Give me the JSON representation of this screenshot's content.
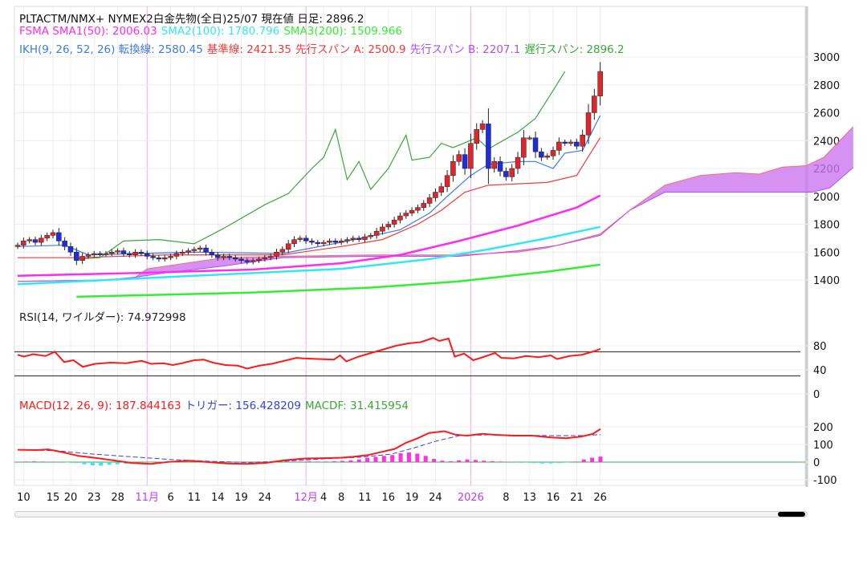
{
  "legend": {
    "title": "PLTACTM/NMX+ NYMEX2白金先物(全日)25/07  現在値 日足: 2896.2",
    "sma1": "FSMA SMA1(50): 2006.03",
    "sma2": "SMA2(100): 1780.796",
    "sma3": "SMA3(200): 1509.966",
    "ikh": "IKH(9, 26, 52, 26) 転換線: 2580.45",
    "kijun": "基準線: 2421.35",
    "spanA": "先行スパン A: 2500.9",
    "spanB": "先行スパン B: 2207.1",
    "chikou": "遅行スパン: 2896.2",
    "rsi": "RSI(14, ワイルダー): 74.972998",
    "macd": "MACD(12, 26, 9): 187.844163",
    "trigger": "トリガー: 156.428209",
    "macdf": "MACDF: 31.415954"
  },
  "colors": {
    "up": "#e0262b",
    "down": "#1f2ddb",
    "sma1": "#ff2cf0",
    "sma2": "#33e6f5",
    "sma3": "#33ee33",
    "tenkan": "#3d7be6",
    "kijun": "#f03a3a",
    "chikou": "#3aa83a",
    "cloud": "#cc77f0",
    "rsi": "#ff1a1a",
    "macd": "#ff1a1a",
    "signal": "#3344dd",
    "hist": "#ff33dd",
    "month": "#c33cf0"
  },
  "chart_data": [
    {
      "type": "candlestick",
      "title": "PLTACTM/NMX+ NYMEX2白金先物(全日)25/07",
      "ylim": [
        1300,
        3100
      ],
      "yticks": [
        1400,
        1600,
        1800,
        2000,
        2200,
        2400,
        2600,
        2800,
        3000
      ],
      "xticks": [
        {
          "i": 1,
          "label": "10"
        },
        {
          "i": 6,
          "label": "15"
        },
        {
          "i": 9,
          "label": "20"
        },
        {
          "i": 13,
          "label": "23"
        },
        {
          "i": 17,
          "label": "28"
        },
        {
          "i": 22,
          "label": "11月",
          "month": true
        },
        {
          "i": 26,
          "label": "6"
        },
        {
          "i": 30,
          "label": "11"
        },
        {
          "i": 34,
          "label": "14"
        },
        {
          "i": 38,
          "label": "19"
        },
        {
          "i": 42,
          "label": "24"
        },
        {
          "i": 49,
          "label": "12月",
          "month": true
        },
        {
          "i": 52,
          "label": "4"
        },
        {
          "i": 55,
          "label": "8"
        },
        {
          "i": 59,
          "label": "11"
        },
        {
          "i": 63,
          "label": "16"
        },
        {
          "i": 67,
          "label": "19"
        },
        {
          "i": 71,
          "label": "24"
        },
        {
          "i": 77,
          "label": "2026",
          "month": true
        },
        {
          "i": 83,
          "label": "8"
        },
        {
          "i": 87,
          "label": "13"
        },
        {
          "i": 91,
          "label": "16"
        },
        {
          "i": 95,
          "label": "21"
        },
        {
          "i": 99,
          "label": "26"
        }
      ],
      "close": [
        1650,
        1680,
        1690,
        1670,
        1700,
        1720,
        1740,
        1680,
        1640,
        1600,
        1540,
        1570,
        1580,
        1590,
        1585,
        1590,
        1600,
        1610,
        1590,
        1580,
        1600,
        1590,
        1570,
        1560,
        1550,
        1560,
        1570,
        1590,
        1600,
        1610,
        1620,
        1630,
        1600,
        1580,
        1560,
        1570,
        1560,
        1550,
        1540,
        1530,
        1540,
        1550,
        1560,
        1570,
        1600,
        1620,
        1660,
        1690,
        1700,
        1680,
        1670,
        1660,
        1670,
        1680,
        1670,
        1680,
        1690,
        1700,
        1690,
        1710,
        1720,
        1750,
        1780,
        1800,
        1830,
        1860,
        1880,
        1900,
        1920,
        1950,
        1990,
        2030,
        2070,
        2150,
        2250,
        2300,
        2200,
        2380,
        2480,
        2520,
        2200,
        2250,
        2180,
        2140,
        2200,
        2280,
        2420,
        2420,
        2320,
        2280,
        2290,
        2330,
        2390,
        2380,
        2390,
        2360,
        2440,
        2600,
        2720,
        2896
      ],
      "series": {
        "sma1": [
          [
            0,
            1430
          ],
          [
            20,
            1450
          ],
          [
            40,
            1475
          ],
          [
            55,
            1520
          ],
          [
            65,
            1580
          ],
          [
            75,
            1680
          ],
          [
            85,
            1790
          ],
          [
            95,
            1920
          ],
          [
            99,
            2006
          ]
        ],
        "sma2": [
          [
            0,
            1370
          ],
          [
            30,
            1430
          ],
          [
            55,
            1480
          ],
          [
            70,
            1550
          ],
          [
            80,
            1620
          ],
          [
            90,
            1700
          ],
          [
            99,
            1781
          ]
        ],
        "sma3": [
          [
            10,
            1280
          ],
          [
            40,
            1310
          ],
          [
            60,
            1345
          ],
          [
            75,
            1390
          ],
          [
            90,
            1460
          ],
          [
            99,
            1510
          ]
        ],
        "tenkan": [
          [
            0,
            1640
          ],
          [
            8,
            1650
          ],
          [
            12,
            1580
          ],
          [
            30,
            1600
          ],
          [
            45,
            1590
          ],
          [
            55,
            1670
          ],
          [
            65,
            1760
          ],
          [
            70,
            1880
          ],
          [
            73,
            2000
          ],
          [
            77,
            2150
          ],
          [
            80,
            2230
          ],
          [
            85,
            2250
          ],
          [
            88,
            2250
          ],
          [
            91,
            2200
          ],
          [
            93,
            2310
          ],
          [
            96,
            2330
          ],
          [
            99,
            2580
          ]
        ],
        "kijun": [
          [
            0,
            1560
          ],
          [
            10,
            1560
          ],
          [
            25,
            1580
          ],
          [
            45,
            1580
          ],
          [
            55,
            1640
          ],
          [
            62,
            1690
          ],
          [
            68,
            1800
          ],
          [
            72,
            1900
          ],
          [
            76,
            2030
          ],
          [
            80,
            2080
          ],
          [
            90,
            2100
          ],
          [
            95,
            2150
          ],
          [
            99,
            2421
          ]
        ],
        "chikou": [
          [
            10,
            1550
          ],
          [
            14,
            1560
          ],
          [
            18,
            1680
          ],
          [
            24,
            1690
          ],
          [
            30,
            1660
          ],
          [
            35,
            1770
          ],
          [
            42,
            1940
          ],
          [
            46,
            2020
          ],
          [
            50,
            2200
          ],
          [
            52,
            2280
          ],
          [
            54,
            2480
          ],
          [
            56,
            2120
          ],
          [
            58,
            2250
          ],
          [
            60,
            2050
          ],
          [
            63,
            2200
          ],
          [
            66,
            2440
          ],
          [
            67,
            2260
          ],
          [
            70,
            2280
          ],
          [
            72,
            2380
          ],
          [
            74,
            2350
          ],
          [
            78,
            2420
          ],
          [
            80,
            2340
          ],
          [
            85,
            2460
          ],
          [
            88,
            2560
          ],
          [
            91,
            2760
          ],
          [
            93,
            2896
          ]
        ],
        "spanA": [
          [
            0,
            1390
          ],
          [
            15,
            1400
          ],
          [
            20,
            1420
          ],
          [
            22,
            1480
          ],
          [
            35,
            1560
          ],
          [
            45,
            1570
          ],
          [
            60,
            1580
          ],
          [
            75,
            1580
          ],
          [
            85,
            1600
          ],
          [
            90,
            1630
          ],
          [
            99,
            1730
          ],
          [
            104,
            1900
          ],
          [
            110,
            2080
          ],
          [
            116,
            2150
          ],
          [
            122,
            2170
          ],
          [
            126,
            2160
          ],
          [
            130,
            2210
          ],
          [
            134,
            2220
          ],
          [
            137,
            2280
          ],
          [
            142,
            2500
          ]
        ],
        "spanB": [
          [
            0,
            1390
          ],
          [
            15,
            1400
          ],
          [
            20,
            1420
          ],
          [
            25,
            1450
          ],
          [
            35,
            1500
          ],
          [
            45,
            1560
          ],
          [
            60,
            1570
          ],
          [
            75,
            1570
          ],
          [
            85,
            1610
          ],
          [
            92,
            1650
          ],
          [
            99,
            1720
          ],
          [
            104,
            1900
          ],
          [
            110,
            2030
          ],
          [
            120,
            2030
          ],
          [
            135,
            2030
          ],
          [
            138,
            2060
          ],
          [
            142,
            2207
          ]
        ]
      }
    },
    {
      "type": "line",
      "title": "RSI(14, ワイルダー): 74.972998",
      "ylim": [
        0,
        100
      ],
      "yticks": [
        0,
        40,
        80
      ],
      "hlines": [
        30,
        70
      ],
      "values": [
        [
          0,
          65
        ],
        [
          2,
          62
        ],
        [
          5,
          66
        ],
        [
          9,
          63
        ],
        [
          12,
          70
        ],
        [
          15,
          53
        ],
        [
          18,
          56
        ],
        [
          21,
          45
        ],
        [
          25,
          50
        ],
        [
          30,
          52
        ],
        [
          35,
          51
        ],
        [
          40,
          55
        ],
        [
          43,
          50
        ],
        [
          47,
          51
        ],
        [
          50,
          48
        ],
        [
          53,
          51
        ],
        [
          57,
          56
        ],
        [
          60,
          57
        ],
        [
          63,
          52
        ],
        [
          67,
          48
        ],
        [
          71,
          47
        ],
        [
          74,
          42
        ],
        [
          78,
          47
        ],
        [
          82,
          50
        ],
        [
          86,
          55
        ],
        [
          90,
          60
        ],
        [
          92,
          59
        ],
        [
          97,
          58
        ],
        [
          102,
          57
        ],
        [
          104,
          64
        ],
        [
          106,
          54
        ],
        [
          110,
          62
        ],
        [
          114,
          68
        ],
        [
          118,
          74
        ],
        [
          122,
          80
        ],
        [
          126,
          84
        ],
        [
          130,
          86
        ],
        [
          134,
          93
        ],
        [
          136,
          88
        ],
        [
          139,
          92
        ],
        [
          141,
          62
        ],
        [
          144,
          67
        ],
        [
          147,
          56
        ],
        [
          150,
          61
        ],
        [
          154,
          68
        ],
        [
          156,
          60
        ],
        [
          160,
          59
        ],
        [
          164,
          63
        ],
        [
          168,
          61
        ],
        [
          172,
          64
        ],
        [
          174,
          58
        ],
        [
          178,
          63
        ],
        [
          182,
          65
        ],
        [
          186,
          71
        ],
        [
          188,
          75
        ]
      ]
    },
    {
      "type": "bar+line",
      "title": "MACD(12, 26, 9)",
      "ylim": [
        -150,
        250
      ],
      "yticks": [
        -100,
        0,
        100,
        200
      ],
      "macd": [
        [
          0,
          70
        ],
        [
          5,
          68
        ],
        [
          8,
          72
        ],
        [
          12,
          55
        ],
        [
          16,
          35
        ],
        [
          20,
          25
        ],
        [
          25,
          10
        ],
        [
          30,
          -5
        ],
        [
          35,
          -10
        ],
        [
          40,
          2
        ],
        [
          45,
          8
        ],
        [
          50,
          0
        ],
        [
          55,
          -8
        ],
        [
          60,
          -10
        ],
        [
          65,
          -5
        ],
        [
          70,
          10
        ],
        [
          75,
          20
        ],
        [
          80,
          22
        ],
        [
          85,
          25
        ],
        [
          88,
          30
        ],
        [
          92,
          40
        ],
        [
          96,
          60
        ],
        [
          99,
          75
        ],
        [
          102,
          110
        ],
        [
          105,
          135
        ],
        [
          108,
          165
        ],
        [
          112,
          175
        ],
        [
          115,
          155
        ],
        [
          118,
          150
        ],
        [
          122,
          160
        ],
        [
          125,
          155
        ],
        [
          130,
          150
        ],
        [
          135,
          150
        ],
        [
          140,
          140
        ],
        [
          144,
          135
        ],
        [
          148,
          145
        ],
        [
          151,
          160
        ],
        [
          153,
          188
        ]
      ],
      "signal": [
        [
          0,
          70
        ],
        [
          10,
          65
        ],
        [
          20,
          45
        ],
        [
          30,
          30
        ],
        [
          40,
          15
        ],
        [
          50,
          5
        ],
        [
          60,
          -2
        ],
        [
          70,
          5
        ],
        [
          80,
          18
        ],
        [
          90,
          28
        ],
        [
          98,
          45
        ],
        [
          104,
          80
        ],
        [
          110,
          120
        ],
        [
          116,
          150
        ],
        [
          124,
          155
        ],
        [
          132,
          152
        ],
        [
          140,
          150
        ],
        [
          148,
          150
        ],
        [
          153,
          156
        ]
      ],
      "hist": [
        2,
        3,
        4,
        3,
        2,
        1,
        -2,
        -5,
        -12,
        -18,
        -20,
        -15,
        -12,
        -10,
        -8,
        -5,
        -3,
        -2,
        0,
        3,
        5,
        5,
        3,
        2,
        1,
        0,
        -3,
        -5,
        -6,
        -4,
        -2,
        -1,
        0,
        2,
        3,
        4,
        3,
        3,
        5,
        7,
        10,
        15,
        25,
        30,
        35,
        40,
        50,
        55,
        48,
        35,
        18,
        8,
        5,
        10,
        15,
        12,
        8,
        5,
        3,
        2,
        -1,
        -3,
        -5,
        -8,
        -7,
        -5,
        -2,
        3,
        15,
        25,
        31
      ]
    }
  ],
  "scrollbar": {
    "position": 1.0
  }
}
